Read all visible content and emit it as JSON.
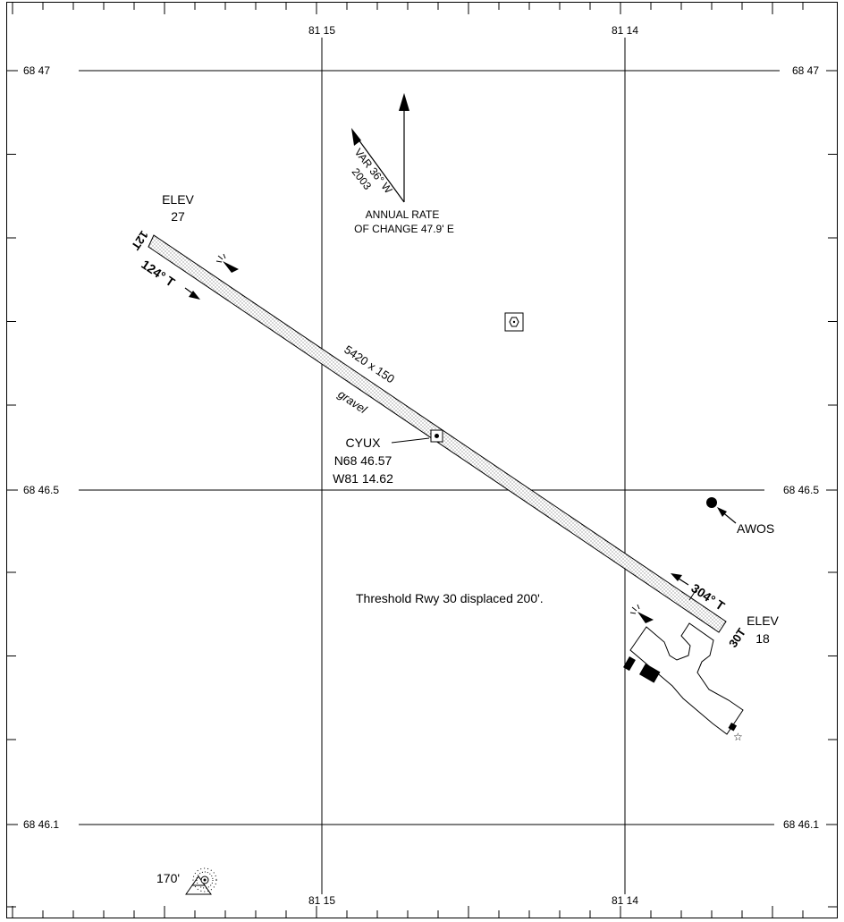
{
  "longitudes": {
    "west": "81 15",
    "east": "81 14"
  },
  "latitudes": {
    "top": "68 47",
    "middle": "68 46.5",
    "bottom": "68 46.1"
  },
  "magnetic": {
    "variation": "VAR 36° W",
    "year": "2003",
    "rate_line1": "ANNUAL RATE",
    "rate_line2": "OF CHANGE 47.9' E"
  },
  "runway": {
    "dimensions": "5420 x 150",
    "surface": "gravel",
    "threshold_note": "Threshold Rwy 30 displaced 200'.",
    "end_12": {
      "designator": "12T",
      "heading": "124° T",
      "elev_label": "ELEV",
      "elev_value": "27"
    },
    "end_30": {
      "designator": "30T",
      "heading": "304° T",
      "elev_label": "ELEV",
      "elev_value": "18"
    }
  },
  "airport": {
    "ident": "CYUX",
    "lat": "N68 46.57",
    "lon": "W81 14.62"
  },
  "awos": {
    "label": "AWOS"
  },
  "obstacle": {
    "height": "170'"
  }
}
